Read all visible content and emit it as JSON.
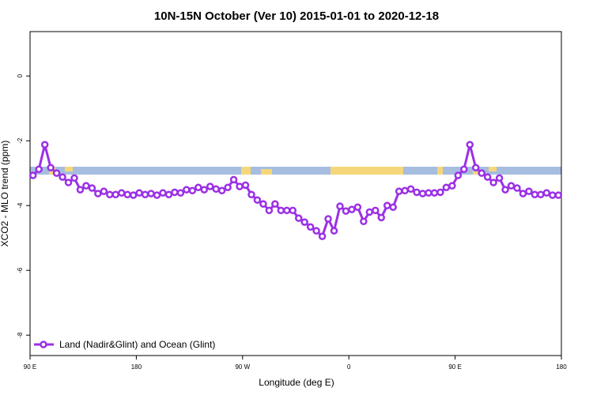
{
  "chart_data": {
    "type": "line",
    "title": "10N-15N October (Ver 10)   2015-01-01 to 2020-12-18",
    "xlabel": "Longitude (deg E)",
    "ylabel": "XCO2 - MLO trend (ppm)",
    "xlim": [
      90,
      540
    ],
    "xticks": [
      {
        "value": 90,
        "label": "90 E"
      },
      180,
      {
        "value": 270,
        "label": "90 W"
      },
      {
        "value": 360,
        "label": "0"
      },
      {
        "value": 450,
        "label": "90 E"
      },
      {
        "value": 540,
        "label": "180"
      }
    ],
    "ylim": [
      -8.63,
      1.37
    ],
    "yticks": [
      0,
      -2,
      -4,
      -6,
      -8
    ],
    "legend": "bottom-left",
    "x": [
      92.5,
      97.5,
      102.5,
      107.5,
      112.5,
      117.5,
      122.5,
      127.5,
      132.5,
      137.5,
      142.5,
      147.5,
      152.5,
      157.5,
      162.5,
      167.5,
      172.5,
      177.5,
      182.5,
      187.5,
      192.5,
      197.5,
      202.5,
      207.5,
      212.5,
      217.5,
      222.5,
      227.5,
      232.5,
      237.5,
      242.5,
      247.5,
      252.5,
      257.5,
      262.5,
      267.5,
      272.5,
      277.5,
      282.5,
      287.5,
      292.5,
      297.5,
      302.5,
      307.5,
      312.5,
      317.5,
      322.5,
      327.5,
      332.5,
      337.5,
      342.5,
      347.5,
      352.5,
      357.5,
      362.5,
      367.5,
      372.5,
      377.5,
      382.5,
      387.5,
      392.5,
      397.5,
      402.5,
      407.5,
      412.5,
      417.5,
      422.5,
      427.5,
      432.5,
      437.5,
      442.5,
      447.5,
      452.5,
      457.5,
      462.5,
      467.5,
      472.5,
      477.5,
      482.5,
      487.5,
      492.5,
      497.5,
      502.5,
      507.5,
      512.5,
      517.5,
      522.5,
      527.5,
      532.5,
      537.5
    ],
    "series": [
      {
        "name": "Land (Nadir&Glint) and Ocean (Glint)",
        "color": "#9b30e6",
        "values": [
          -3.07,
          -2.88,
          -2.12,
          -2.83,
          -3.0,
          -3.12,
          -3.29,
          -3.15,
          -3.51,
          -3.39,
          -3.46,
          -3.63,
          -3.56,
          -3.66,
          -3.66,
          -3.61,
          -3.66,
          -3.68,
          -3.61,
          -3.66,
          -3.63,
          -3.68,
          -3.61,
          -3.66,
          -3.59,
          -3.61,
          -3.51,
          -3.54,
          -3.44,
          -3.51,
          -3.41,
          -3.49,
          -3.54,
          -3.44,
          -3.2,
          -3.41,
          -3.37,
          -3.66,
          -3.83,
          -3.95,
          -4.15,
          -3.95,
          -4.15,
          -4.15,
          -4.15,
          -4.39,
          -4.51,
          -4.66,
          -4.78,
          -4.95,
          -4.41,
          -4.78,
          -4.02,
          -4.17,
          -4.12,
          -4.05,
          -4.49,
          -4.2,
          -4.15,
          -4.37,
          -4.0,
          -4.05,
          -3.56,
          -3.54,
          -3.49,
          -3.59,
          -3.63,
          -3.61,
          -3.61,
          -3.59,
          -3.44,
          -3.39,
          -3.07,
          -2.88,
          -2.12,
          -2.83,
          -3.0,
          -3.12,
          -3.29,
          -3.15,
          -3.51,
          -3.39,
          -3.46,
          -3.63,
          -3.56,
          -3.66,
          -3.66,
          -3.61,
          -3.68,
          -3.68
        ]
      }
    ]
  }
}
